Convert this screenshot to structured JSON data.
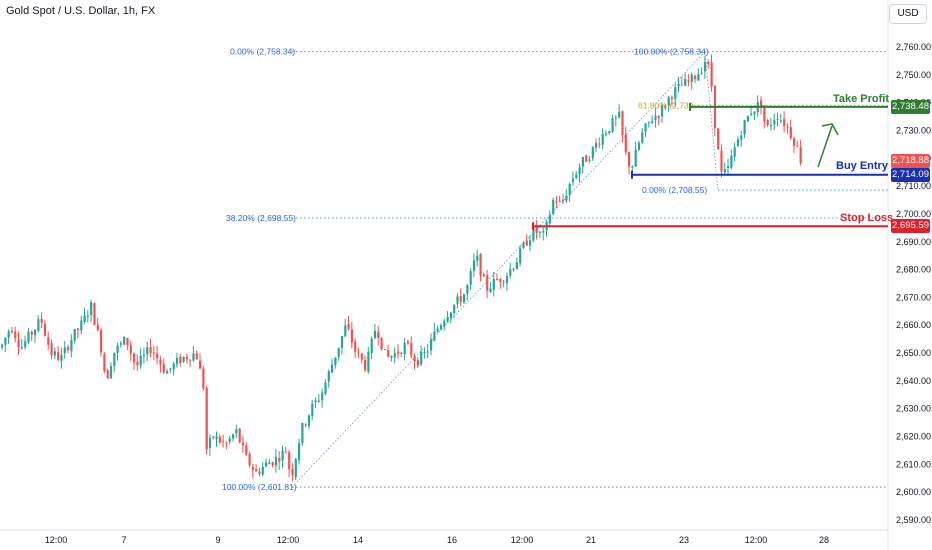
{
  "header": {
    "title": "Gold Spot / U.S. Dollar, 1h, FX",
    "currency_button": "USD"
  },
  "annotations": {
    "take_profit": {
      "label": "Take Profit",
      "price_tag": "2,738.48",
      "color": "#2e7d32"
    },
    "buy_entry": {
      "label": "Buy Entry",
      "price_tag": "2,714.09",
      "color": "#1a2fb3"
    },
    "stop_loss": {
      "label": "Stop Loss",
      "price_tag": "2,695.59",
      "color": "#e0202a"
    },
    "last_price_tag": {
      "value": "2,718.88",
      "color": "#f05350"
    }
  },
  "fib_levels": [
    {
      "text": "0.00% (2,758.34)",
      "price": 2758.34
    },
    {
      "text": "38.20% (2,698.55)",
      "price": 2698.55
    },
    {
      "text": "100.00% (2,601.81)",
      "price": 2601.81
    },
    {
      "text": "100.00% (2,758.34)",
      "price": 2758.34
    },
    {
      "text": "61.80% (2,739.",
      "price": 2739.0
    },
    {
      "text": "0.00% (2,708.55)",
      "price": 2708.55
    }
  ],
  "chart_data": {
    "type": "candlestick",
    "ylim": [
      2585,
      2765
    ],
    "y_ticks": [
      "2,760.00",
      "2,750.00",
      "2,740.00",
      "2,730.00",
      "2,720.00",
      "2,710.00",
      "2,700.00",
      "2,690.00",
      "2,680.00",
      "2,670.00",
      "2,660.00",
      "2,650.00",
      "2,640.00",
      "2,630.00",
      "2,620.00",
      "2,610.00",
      "2,600.00",
      "2,590.00"
    ],
    "x_ticks": [
      "12:00",
      "7",
      "9",
      "12:00",
      "14",
      "16",
      "12:00",
      "21",
      "23",
      "12:00",
      "28"
    ],
    "colors": {
      "up": "#26a69a",
      "down": "#ef5350"
    },
    "price_path": [
      [
        0,
        2652
      ],
      [
        10,
        2660
      ],
      [
        20,
        2652
      ],
      [
        30,
        2657
      ],
      [
        40,
        2662
      ],
      [
        50,
        2650
      ],
      [
        60,
        2648
      ],
      [
        70,
        2655
      ],
      [
        80,
        2660
      ],
      [
        90,
        2667
      ],
      [
        100,
        2652
      ],
      [
        105,
        2640
      ],
      [
        112,
        2650
      ],
      [
        125,
        2655
      ],
      [
        135,
        2645
      ],
      [
        150,
        2652
      ],
      [
        165,
        2643
      ],
      [
        180,
        2648
      ],
      [
        195,
        2650
      ],
      [
        203,
        2637
      ],
      [
        205,
        2615
      ],
      [
        212,
        2620
      ],
      [
        225,
        2617
      ],
      [
        235,
        2622
      ],
      [
        245,
        2612
      ],
      [
        255,
        2607
      ],
      [
        265,
        2610
      ],
      [
        275,
        2612
      ],
      [
        285,
        2615
      ],
      [
        290,
        2605
      ],
      [
        300,
        2622
      ],
      [
        310,
        2630
      ],
      [
        320,
        2635
      ],
      [
        330,
        2645
      ],
      [
        345,
        2660
      ],
      [
        355,
        2650
      ],
      [
        365,
        2645
      ],
      [
        375,
        2660
      ],
      [
        385,
        2648
      ],
      [
        395,
        2650
      ],
      [
        405,
        2653
      ],
      [
        415,
        2647
      ],
      [
        425,
        2650
      ],
      [
        435,
        2658
      ],
      [
        445,
        2664
      ],
      [
        455,
        2668
      ],
      [
        465,
        2672
      ],
      [
        475,
        2685
      ],
      [
        485,
        2673
      ],
      [
        495,
        2676
      ],
      [
        505,
        2678
      ],
      [
        515,
        2683
      ],
      [
        525,
        2690
      ],
      [
        533,
        2694
      ],
      [
        543,
        2692
      ],
      [
        553,
        2706
      ],
      [
        560,
        2703
      ],
      [
        570,
        2712
      ],
      [
        580,
        2718
      ],
      [
        590,
        2722
      ],
      [
        600,
        2728
      ],
      [
        610,
        2732
      ],
      [
        618,
        2735
      ],
      [
        624,
        2722
      ],
      [
        630,
        2716
      ],
      [
        640,
        2728
      ],
      [
        650,
        2734
      ],
      [
        660,
        2737
      ],
      [
        670,
        2743
      ],
      [
        680,
        2746
      ],
      [
        690,
        2748
      ],
      [
        700,
        2752
      ],
      [
        705,
        2756
      ],
      [
        710,
        2748
      ],
      [
        715,
        2728
      ],
      [
        720,
        2714
      ],
      [
        726,
        2715
      ],
      [
        732,
        2722
      ],
      [
        740,
        2730
      ],
      [
        750,
        2737
      ],
      [
        760,
        2740
      ],
      [
        765,
        2730
      ],
      [
        775,
        2736
      ],
      [
        785,
        2732
      ],
      [
        795,
        2725
      ],
      [
        800,
        2719
      ]
    ]
  }
}
